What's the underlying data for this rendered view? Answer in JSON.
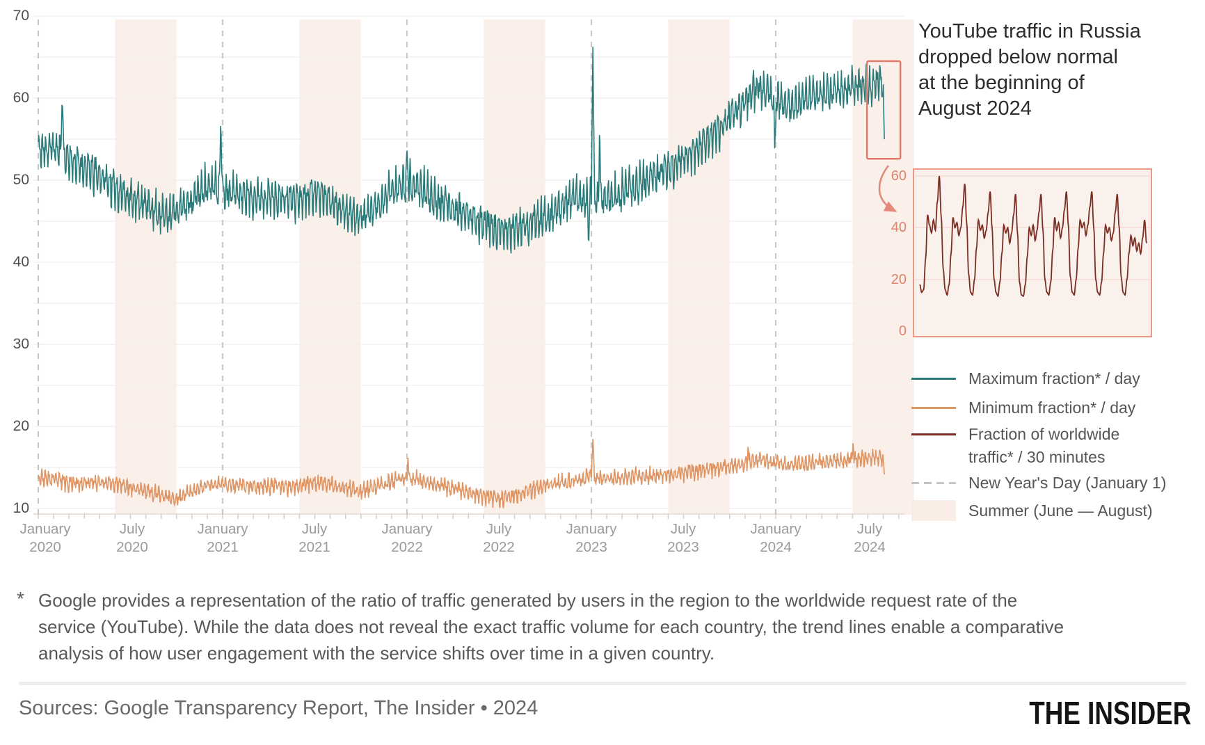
{
  "header": {
    "title_lines": [
      "YouTube traffic in Russia",
      "dropped below normal",
      "at the beginning of",
      "August 2024"
    ]
  },
  "footnote": {
    "marker": "*",
    "text": "Google provides a representation of the ratio of traffic generated by users in the region to the worldwide request rate of the service (YouTube). While the data does not reveal the exact traffic volume for each country, the trend lines enable a comparative analysis of how user engagement with the service shifts over time in a given country."
  },
  "sources": {
    "text": "Sources: Google Transparency Report, The Insider • 2024"
  },
  "logo": {
    "text": "THE INSIDER"
  },
  "chart_data": {
    "type": "line",
    "title": "YouTube traffic in Russia dropped below normal at the beginning of August 2024",
    "colors": {
      "max_line": "#2a7a7a",
      "min_line": "#df9463",
      "inset_line": "#7b2d22",
      "accent": "#e4796b",
      "arrow": "#e4897a",
      "summer_band": "#faf0e9",
      "inset_bg": "#faf1ec",
      "inset_border": "#ea9b85",
      "new_year_line": "#c8c8c8",
      "gridline": "#f3efeb",
      "axis_line": "#e9e1da"
    },
    "y_axis": {
      "min": 10,
      "max": 70,
      "gridline_step": 5,
      "tick_labels": [
        "70",
        "60",
        "50",
        "40",
        "30",
        "20",
        "10"
      ]
    },
    "x_axis": {
      "start_t": 0,
      "end_t": 4.59,
      "start_label": "January 2020",
      "end_label": "August 2024",
      "new_year_ts": [
        0,
        1,
        2,
        3,
        4
      ],
      "summer_band_months": [
        5,
        8
      ],
      "ticks": [
        {
          "month": "January",
          "year": "2020"
        },
        {
          "month": "July",
          "year": "2020"
        },
        {
          "month": "January",
          "year": "2021"
        },
        {
          "month": "July",
          "year": "2021"
        },
        {
          "month": "January",
          "year": "2022"
        },
        {
          "month": "July",
          "year": "2022"
        },
        {
          "month": "January",
          "year": "2023"
        },
        {
          "month": "July",
          "year": "2023"
        },
        {
          "month": "January",
          "year": "2024"
        },
        {
          "month": "July",
          "year": "2024"
        }
      ]
    },
    "series": [
      {
        "name": "Maximum fraction* / day",
        "color": "#2a7a7a",
        "monthly_values": [
          53.5,
          54.0,
          52.5,
          51.5,
          50.5,
          49.0,
          47.8,
          47.0,
          45.8,
          46.2,
          47.5,
          49.5,
          49.0,
          48.3,
          48.0,
          48.0,
          47.6,
          47.8,
          48.6,
          47.6,
          46.0,
          45.6,
          46.6,
          48.6,
          49.6,
          48.8,
          47.6,
          46.6,
          45.6,
          44.6,
          43.6,
          44.0,
          44.6,
          45.6,
          46.6,
          48.0,
          47.8,
          47.6,
          48.4,
          49.4,
          50.4,
          51.4,
          52.6,
          54.0,
          55.6,
          57.6,
          59.6,
          61.4,
          59.6,
          59.0,
          60.0,
          60.6,
          61.0,
          61.2,
          61.6,
          61.8,
          61.8
        ],
        "texture": {
          "weekly_amp": 1.6,
          "noise_amp": 1.0,
          "phase": 0.4,
          "seed": 11
        },
        "events": [
          {
            "x": 0.13,
            "v": 60.5,
            "w": 3
          },
          {
            "x": 0.99,
            "v": 57.6,
            "w": 3
          },
          {
            "x": 2.0,
            "v": 53.6,
            "w": 3
          },
          {
            "x": 2.985,
            "v": 41.2,
            "w": 2
          },
          {
            "x": 3.008,
            "v": 66.8,
            "w": 3
          },
          {
            "x": 3.045,
            "v": 58.0,
            "w": 2
          },
          {
            "x": 3.995,
            "v": 53.2,
            "w": 2
          }
        ],
        "end_drop": {
          "days": 3,
          "value": 54.0
        }
      },
      {
        "name": "Minimum fraction* / day",
        "color": "#df9463",
        "monthly_values": [
          13.8,
          13.5,
          13.2,
          13.0,
          13.3,
          13.0,
          12.6,
          12.2,
          11.6,
          11.2,
          12.2,
          12.8,
          13.0,
          12.8,
          12.6,
          12.8,
          12.7,
          12.8,
          13.2,
          13.0,
          12.4,
          12.2,
          12.6,
          13.2,
          13.8,
          13.4,
          12.8,
          12.4,
          12.0,
          11.6,
          11.2,
          11.6,
          12.2,
          12.7,
          13.1,
          13.4,
          14.0,
          13.6,
          13.7,
          13.9,
          14.0,
          14.2,
          14.4,
          14.6,
          14.9,
          15.2,
          15.6,
          16.0,
          15.5,
          15.3,
          15.5,
          15.7,
          15.9,
          16.0,
          16.3,
          16.2,
          16.0
        ],
        "texture": {
          "weekly_amp": 0.6,
          "noise_amp": 0.5,
          "phase": 1.3,
          "seed": 23
        },
        "events": [
          {
            "x": 2.005,
            "v": 16.4,
            "w": 2
          },
          {
            "x": 3.008,
            "v": 18.6,
            "w": 3
          },
          {
            "x": 3.85,
            "v": 17.8,
            "w": 2
          },
          {
            "x": 4.42,
            "v": 18.3,
            "w": 2
          }
        ],
        "end_drop": {
          "days": 3,
          "value": 13.8
        }
      }
    ],
    "annotation": {
      "highlight_rect": {
        "x_start_t": 4.495,
        "x_end_t": 4.676,
        "v_min": 52.6,
        "v_max": 64.5
      }
    },
    "inset": {
      "series_name": "Fraction of worldwide traffic* / 30 minutes",
      "color": "#7b2d22",
      "y_min": 0,
      "y_max": 60,
      "tick_labels": [
        "60",
        "40",
        "20",
        "0"
      ],
      "span_days": 9,
      "values": [
        18,
        15,
        16,
        28,
        45,
        41,
        38,
        43,
        39,
        50,
        60,
        44,
        24,
        16,
        14,
        18,
        30,
        44,
        40,
        42,
        37,
        40,
        48,
        57,
        42,
        22,
        15,
        14,
        20,
        32,
        43,
        39,
        41,
        36,
        39,
        46,
        54,
        40,
        20,
        15,
        13.5,
        19,
        30,
        41,
        38,
        40,
        34,
        38,
        45,
        53,
        38,
        19,
        14,
        13.5,
        18,
        29,
        40,
        37,
        41,
        35,
        39,
        46,
        53,
        39,
        20,
        15,
        14,
        19,
        31,
        44,
        39,
        42,
        36,
        40,
        47,
        54,
        41,
        21,
        15,
        14,
        20,
        32,
        43,
        40,
        42,
        37,
        41,
        48,
        54,
        40,
        20,
        15,
        14,
        19,
        30,
        41,
        38,
        40,
        35,
        38,
        46,
        53,
        40,
        21,
        15,
        14,
        20,
        30,
        37,
        33,
        36,
        31,
        34,
        30,
        36,
        43,
        34
      ]
    },
    "legend": [
      {
        "label": "Maximum fraction* / day",
        "swatch": "line",
        "color": "#2a7a7a"
      },
      {
        "label": "Minimum fraction* / day",
        "swatch": "line",
        "color": "#df9463"
      },
      {
        "label": "Fraction of worldwide\ntraffic* / 30 minutes",
        "swatch": "line",
        "color": "#7b2d22"
      },
      {
        "label": "New Year's Day (January 1)",
        "swatch": "dashed",
        "color": "#c4c4c4"
      },
      {
        "label": "Summer (June — August)",
        "swatch": "band",
        "color": "#f8ece4"
      }
    ]
  }
}
